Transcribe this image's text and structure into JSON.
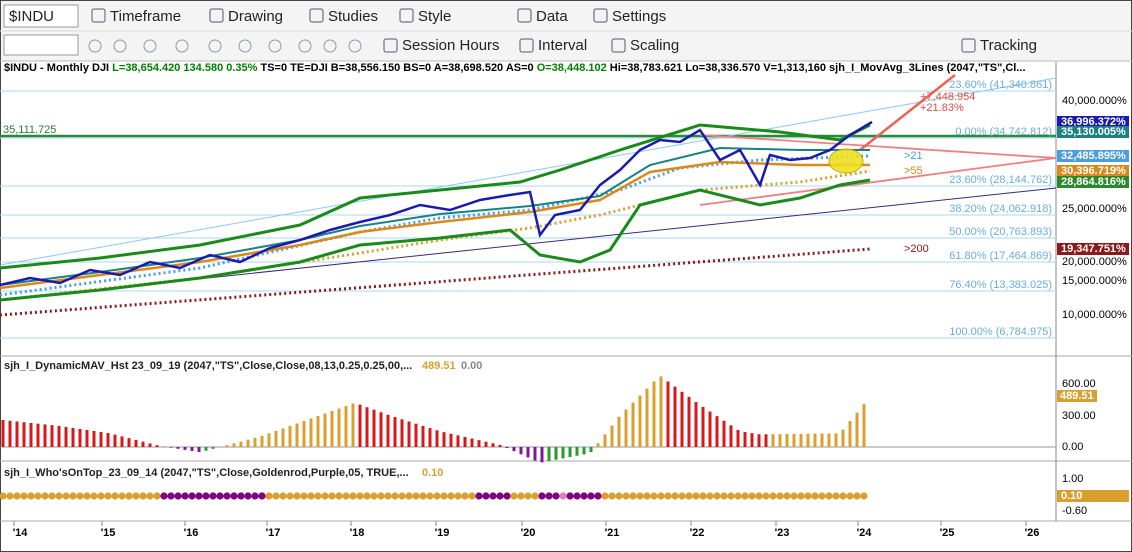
{
  "toolbar": {
    "symbol": "$INDU",
    "menus": [
      "Timeframe",
      "Drawing",
      "Studies",
      "Style",
      "Data",
      "Settings"
    ]
  },
  "toolbar2": {
    "items": [
      "Session Hours",
      "Interval",
      "Scaling",
      "Tracking"
    ]
  },
  "header": [
    {
      "text": "$INDU - Monthly  DJI",
      "color": "#000000"
    },
    {
      "text": "L=38,654.420  134.580  0.35%",
      "color": "#008000"
    },
    {
      "text": "TS=0  TE=DJI  B=38,556.150  BS=0  A=38,698.520  AS=0",
      "color": "#000000"
    },
    {
      "text": "O=38,448.102",
      "color": "#008000"
    },
    {
      "text": "Hi=38,783.621  Lo=38,336.570  V=1,313,160  sjh_I_MovAvg_3Lines (2047,\"TS\",Cl...",
      "color": "#000000"
    }
  ],
  "price_axis": [
    "40,000.000%",
    "25,000.000%",
    "20,000.000%",
    "15,000.000%",
    "10,000.000%"
  ],
  "price_badges": [
    {
      "text": "36,996.372%",
      "color": "#1a1ab0"
    },
    {
      "text": "35,130.005%",
      "color": "#1a8080"
    },
    {
      "text": "32,485.895%",
      "color": "#4a9ee0"
    },
    {
      "text": "30,396.719%",
      "color": "#d98a1a"
    },
    {
      "text": "28,864.816%",
      "color": "#2a8a2a"
    },
    {
      "text": "19,347.751%",
      "color": "#8b1a1a"
    }
  ],
  "fib_levels": [
    "23.60% (41,340.861)",
    "0.00% (34,742.812)",
    "23.60% (28,144.762)",
    "38.20% (24,062.918)",
    "50.00% (20,763.893)",
    "61.80% (17,464.869)",
    "76.40% (13,383.025)",
    "100.00% (6,784.975)"
  ],
  "annotations": {
    "level": "35,111.725",
    "gain": "+7,448.954",
    "gain_pct": "+21.83%",
    "ma21": ">21",
    "ma55": ">55",
    "ma200": ">200"
  },
  "panel2": {
    "title": "sjh_I_DynamicMAV_Hst 23_09_19 (2047,\"TS\",Close,Close,08,13,0.25,0.25,00,...",
    "value": "489.51",
    "value2": "0.00",
    "axis": [
      "600.00",
      "300.00",
      "0.00"
    ],
    "badge": "489.51"
  },
  "panel3": {
    "title": "sjh_I_Who'sOnTop_23_09_14 (2047,\"TS\",Close,Goldenrod,Purple,05,  TRUE,...",
    "value": "0.10",
    "axis": [
      "1.00",
      "-0.60"
    ],
    "badge": "0.10"
  },
  "x_axis": [
    "'14",
    "'15",
    "'16",
    "'17",
    "'18",
    "'19",
    "'20",
    "'21",
    "'22",
    "'23",
    "'24",
    "'25",
    "'26"
  ]
}
